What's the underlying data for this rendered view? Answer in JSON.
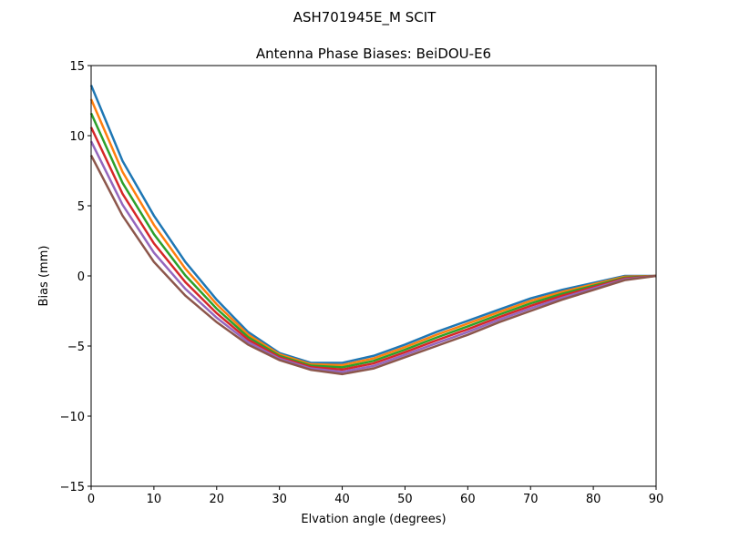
{
  "suptitle": "ASH701945E_M    SCIT",
  "chart_data": {
    "type": "line",
    "title": "Antenna Phase Biases: BeiDOU-E6",
    "xlabel": "Elvation angle (degrees)",
    "ylabel": "Bias (mm)",
    "xlim": [
      0,
      90
    ],
    "ylim": [
      -15,
      15
    ],
    "xticks": [
      "0",
      "10",
      "20",
      "30",
      "40",
      "50",
      "60",
      "70",
      "80",
      "90"
    ],
    "yticks": [
      "−15",
      "−10",
      "−5",
      "0",
      "5",
      "10",
      "15"
    ],
    "grid": false,
    "colors": [
      "#1f77b4",
      "#ff7f0e",
      "#2ca02c",
      "#d62728",
      "#9467bd",
      "#8c564b",
      "#e377c2",
      "#7f7f7f",
      "#bcbd22",
      "#17becf"
    ],
    "x": [
      0,
      5,
      10,
      15,
      20,
      25,
      30,
      35,
      40,
      45,
      50,
      55,
      60,
      65,
      70,
      75,
      80,
      85,
      90
    ],
    "series": [
      {
        "values": [
          13.6,
          8.2,
          4.3,
          1.0,
          -1.7,
          -4.0,
          -5.5,
          -6.2,
          -6.2,
          -5.7,
          -4.9,
          -4.0,
          -3.2,
          -2.4,
          -1.6,
          -1.0,
          -0.5,
          0.0,
          0.0
        ]
      },
      {
        "values": [
          12.6,
          7.42,
          3.64,
          0.52,
          -2.02,
          -4.18,
          -5.6,
          -6.3,
          -6.36,
          -5.88,
          -5.08,
          -4.2,
          -3.4,
          -2.58,
          -1.78,
          -1.14,
          -0.6,
          -0.06,
          0
        ]
      },
      {
        "values": [
          11.6,
          6.64,
          2.98,
          0.04,
          -2.34,
          -4.36,
          -5.7,
          -6.4,
          -6.52,
          -6.06,
          -5.26,
          -4.4,
          -3.6,
          -2.76,
          -1.96,
          -1.28,
          -0.7,
          -0.12,
          0
        ]
      },
      {
        "values": [
          10.6,
          5.86,
          2.32,
          -0.44,
          -2.66,
          -4.54,
          -5.8,
          -6.5,
          -6.68,
          -6.24,
          -5.44,
          -4.6,
          -3.8,
          -2.94,
          -2.14,
          -1.42,
          -0.8,
          -0.18,
          0
        ]
      },
      {
        "values": [
          9.6,
          5.08,
          1.66,
          -0.92,
          -2.98,
          -4.72,
          -5.9,
          -6.6,
          -6.84,
          -6.42,
          -5.62,
          -4.8,
          -4.0,
          -3.12,
          -2.32,
          -1.56,
          -0.9,
          -0.24,
          0
        ]
      },
      {
        "values": [
          8.6,
          4.3,
          1.0,
          -1.4,
          -3.3,
          -4.9,
          -6.0,
          -6.7,
          -7.0,
          -6.6,
          -5.8,
          -5.0,
          -4.2,
          -3.3,
          -2.5,
          -1.7,
          -1.0,
          -0.3,
          0.0
        ]
      }
    ]
  }
}
